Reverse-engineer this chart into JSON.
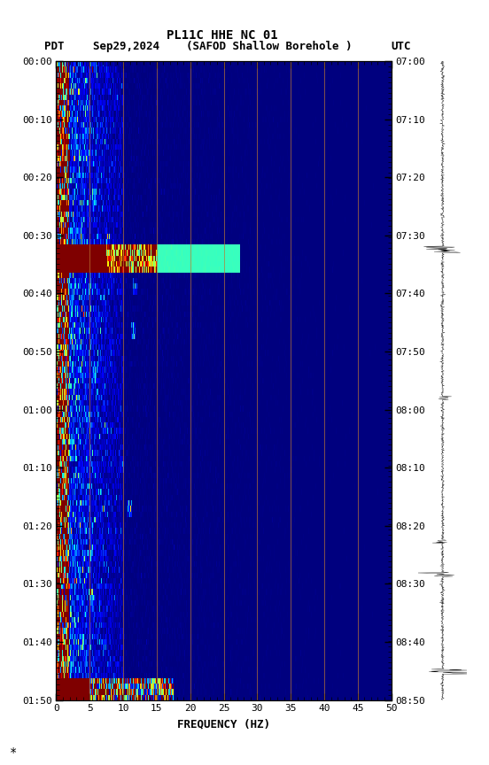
{
  "title_line1": "PL11C HHE NC 01",
  "title_line2": "Sep29,2024    (SAFOD Shallow Borehole )",
  "left_label": "PDT",
  "right_label": "UTC",
  "xlabel": "FREQUENCY (HZ)",
  "freq_min": 0,
  "freq_max": 50,
  "fig_width": 5.52,
  "fig_height": 8.64,
  "dpi": 100,
  "left_ticks": [
    "00:00",
    "00:10",
    "00:20",
    "00:30",
    "00:40",
    "00:50",
    "01:00",
    "01:10",
    "01:20",
    "01:30",
    "01:40",
    "01:50"
  ],
  "right_ticks": [
    "07:00",
    "07:10",
    "07:20",
    "07:30",
    "07:40",
    "07:50",
    "08:00",
    "08:10",
    "08:20",
    "08:30",
    "08:40",
    "08:50"
  ],
  "n_time_bins": 115,
  "n_freq_bins": 500
}
